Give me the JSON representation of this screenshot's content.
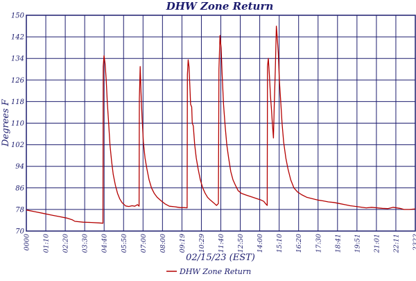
{
  "chart_data": {
    "type": "line",
    "title": "DHW Zone Return",
    "xlabel": "02/15/23 (EST)",
    "ylabel": "Degrees F",
    "ylim": [
      70,
      150
    ],
    "yticks": [
      "150",
      "142",
      "134",
      "126",
      "118",
      "110",
      "102",
      "94",
      "86",
      "78",
      "70"
    ],
    "x_unit": "minutes since 00:00",
    "xlim": [
      0,
      1442
    ],
    "xticks": [
      "0000",
      "01:10",
      "02:20",
      "03:30",
      "04:40",
      "05:50",
      "07:00",
      "08:00",
      "09:19",
      "10:29",
      "11:40",
      "12:50",
      "14:00",
      "15:10",
      "16:20",
      "17:30",
      "18:41",
      "19:51",
      "21:01",
      "22:11",
      "2322"
    ],
    "legend": {
      "position": "bottom-center"
    },
    "grid": true,
    "colors": {
      "axis": "#1c1c6e",
      "grid": "#1c1c6e",
      "series": "#b40000"
    },
    "series": [
      {
        "name": "DHW Zone Return",
        "points": [
          [
            0,
            77.8
          ],
          [
            30,
            77.2
          ],
          [
            60,
            76.6
          ],
          [
            90,
            76.0
          ],
          [
            120,
            75.4
          ],
          [
            150,
            74.8
          ],
          [
            170,
            74.2
          ],
          [
            180,
            73.6
          ],
          [
            210,
            73.3
          ],
          [
            240,
            73.2
          ],
          [
            270,
            73.0
          ],
          [
            284,
            72.9
          ],
          [
            285,
            131
          ],
          [
            288,
            135
          ],
          [
            292,
            132
          ],
          [
            296,
            126
          ],
          [
            300,
            118
          ],
          [
            305,
            110
          ],
          [
            310,
            102
          ],
          [
            316,
            96
          ],
          [
            322,
            91
          ],
          [
            330,
            87
          ],
          [
            338,
            84
          ],
          [
            346,
            82
          ],
          [
            355,
            80.5
          ],
          [
            368,
            79.3
          ],
          [
            380,
            79.1
          ],
          [
            392,
            79.4
          ],
          [
            402,
            79.2
          ],
          [
            412,
            79.8
          ],
          [
            418,
            79.2
          ],
          [
            419,
            119
          ],
          [
            422,
            131
          ],
          [
            425,
            122
          ],
          [
            429,
            112
          ],
          [
            434,
            103
          ],
          [
            440,
            97
          ],
          [
            447,
            93
          ],
          [
            455,
            89
          ],
          [
            464,
            86
          ],
          [
            474,
            84
          ],
          [
            485,
            82.5
          ],
          [
            500,
            81.2
          ],
          [
            515,
            80
          ],
          [
            530,
            79.2
          ],
          [
            550,
            79
          ],
          [
            570,
            78.7
          ],
          [
            585,
            78.7
          ],
          [
            596,
            78.6
          ],
          [
            597,
            128
          ],
          [
            600,
            133.5
          ],
          [
            603,
            131
          ],
          [
            606,
            124
          ],
          [
            609,
            117
          ],
          [
            613,
            116
          ],
          [
            615,
            110
          ],
          [
            619,
            109
          ],
          [
            624,
            102
          ],
          [
            630,
            97
          ],
          [
            637,
            93
          ],
          [
            645,
            89
          ],
          [
            654,
            86
          ],
          [
            663,
            84
          ],
          [
            672,
            82.5
          ],
          [
            682,
            81.5
          ],
          [
            694,
            80.5
          ],
          [
            705,
            79.5
          ],
          [
            712,
            80.2
          ],
          [
            714,
            130
          ],
          [
            718,
            142.5
          ],
          [
            722,
            138
          ],
          [
            726,
            128
          ],
          [
            731,
            117
          ],
          [
            737,
            109
          ],
          [
            743,
            102
          ],
          [
            750,
            97
          ],
          [
            758,
            92
          ],
          [
            766,
            89
          ],
          [
            775,
            87
          ],
          [
            785,
            85
          ],
          [
            797,
            84
          ],
          [
            810,
            83.5
          ],
          [
            825,
            83
          ],
          [
            840,
            82.5
          ],
          [
            855,
            82
          ],
          [
            870,
            81.5
          ],
          [
            880,
            81.0
          ],
          [
            888,
            80.0
          ],
          [
            893,
            79.5
          ],
          [
            894,
            131
          ],
          [
            897,
            134
          ],
          [
            901,
            128
          ],
          [
            905,
            120
          ],
          [
            908,
            116
          ],
          [
            912,
            110
          ],
          [
            916,
            104.5
          ],
          [
            919,
            116
          ],
          [
            923,
            130
          ],
          [
            927,
            146
          ],
          [
            930,
            142
          ],
          [
            934,
            136
          ],
          [
            938,
            126
          ],
          [
            943,
            118
          ],
          [
            948,
            110
          ],
          [
            954,
            103
          ],
          [
            962,
            97
          ],
          [
            970,
            93
          ],
          [
            980,
            89
          ],
          [
            992,
            86
          ],
          [
            1005,
            84.5
          ],
          [
            1020,
            83.5
          ],
          [
            1040,
            82.5
          ],
          [
            1060,
            82
          ],
          [
            1080,
            81.5
          ],
          [
            1100,
            81.2
          ],
          [
            1120,
            80.8
          ],
          [
            1140,
            80.6
          ],
          [
            1160,
            80.2
          ],
          [
            1180,
            79.8
          ],
          [
            1200,
            79.4
          ],
          [
            1230,
            79
          ],
          [
            1260,
            78.6
          ],
          [
            1280,
            78.8
          ],
          [
            1320,
            78.4
          ],
          [
            1340,
            78.3
          ],
          [
            1360,
            78.8
          ],
          [
            1385,
            78.4
          ],
          [
            1400,
            78
          ],
          [
            1420,
            78
          ],
          [
            1442,
            78.2
          ]
        ]
      }
    ]
  }
}
